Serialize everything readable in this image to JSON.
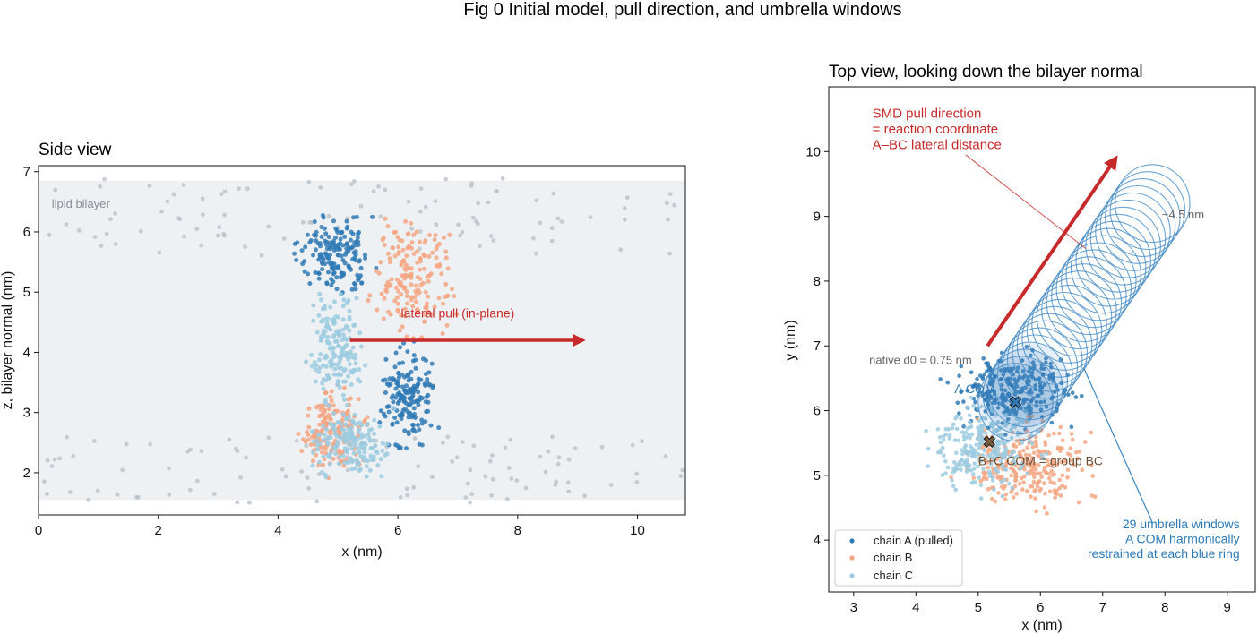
{
  "figure": {
    "title": "Fig 0  Initial model, pull direction, and umbrella windows"
  },
  "colors": {
    "chain_a": "#2f7ab5",
    "chain_b": "#f4a683",
    "chain_c": "#9ccbe0",
    "lipid": "#b8bdc4",
    "pull": "#c62a2a",
    "window": "#3d86c1",
    "bc_com": "#7a5c3e"
  },
  "chart_data": [
    {
      "type": "scatter",
      "title": "Side view",
      "xlabel": "x (nm)",
      "ylabel": "z, bilayer normal (nm)",
      "xlim": [
        0,
        10.8
      ],
      "ylim": [
        1.3,
        7.1
      ],
      "xticks": [
        0,
        2,
        4,
        6,
        8,
        10
      ],
      "yticks": [
        2,
        3,
        4,
        5,
        6,
        7
      ],
      "grid": false,
      "bilayer_band": {
        "z_range": [
          1.55,
          6.85
        ],
        "label": "lipid bilayer"
      },
      "lipid_headgroups": {
        "upper_z_range": [
          5.6,
          6.9
        ],
        "lower_z_range": [
          1.5,
          2.6
        ],
        "x_range": [
          0,
          10.8
        ]
      },
      "series": [
        {
          "name": "chain A",
          "regions": [
            {
              "x": [
                4.3,
                5.6
              ],
              "z": [
                4.8,
                6.5
              ]
            },
            {
              "x": [
                5.6,
                6.7
              ],
              "z": [
                2.2,
                4.3
              ]
            }
          ]
        },
        {
          "name": "chain B",
          "regions": [
            {
              "x": [
                5.4,
                7.0
              ],
              "z": [
                4.0,
                6.5
              ]
            },
            {
              "x": [
                4.3,
                5.6
              ],
              "z": [
                1.9,
                3.5
              ]
            }
          ]
        },
        {
          "name": "chain C",
          "regions": [
            {
              "x": [
                4.4,
                5.5
              ],
              "z": [
                3.0,
                5.2
              ]
            },
            {
              "x": [
                4.5,
                5.9
              ],
              "z": [
                1.8,
                3.2
              ]
            }
          ]
        }
      ],
      "annotations": [
        {
          "text": "lateral pull (in-plane)",
          "arrow_from": [
            5.2,
            4.2
          ],
          "arrow_to": [
            9.15,
            4.2
          ]
        }
      ]
    },
    {
      "type": "scatter",
      "title": "Top view, looking down the bilayer normal",
      "xlabel": "x (nm)",
      "ylabel": "y (nm)",
      "xlim": [
        2.6,
        9.45
      ],
      "ylim": [
        3.2,
        11.0
      ],
      "xticks": [
        3,
        4,
        5,
        6,
        7,
        8,
        9
      ],
      "yticks": [
        4,
        5,
        6,
        7,
        8,
        9,
        10
      ],
      "grid": false,
      "legend_position": "lower-left",
      "legend": [
        "chain A  (pulled)",
        "chain B",
        "chain C"
      ],
      "series": [
        {
          "name": "chain A",
          "regions": [
            {
              "x": [
                4.4,
                6.8
              ],
              "y": [
                5.6,
                7.0
              ]
            }
          ]
        },
        {
          "name": "chain B",
          "regions": [
            {
              "x": [
                4.5,
                7.0
              ],
              "y": [
                4.4,
                6.0
              ]
            }
          ]
        },
        {
          "name": "chain C",
          "regions": [
            {
              "x": [
                4.0,
                6.2
              ],
              "y": [
                4.6,
                6.3
              ]
            }
          ]
        }
      ],
      "a_com": {
        "x": 5.6,
        "y": 6.13,
        "label": "A COM"
      },
      "bc_com": {
        "x": 5.18,
        "y": 5.52,
        "label": "B+C COM = group BC"
      },
      "native_d0_label": "native d0 = 0.75 nm",
      "pull_arrow": {
        "from": [
          5.15,
          7.0
        ],
        "to": [
          7.25,
          9.95
        ]
      },
      "pull_label": [
        "SMD pull direction",
        "= reaction coordinate",
        "A–BC lateral distance"
      ],
      "umbrella_windows": {
        "count": 29,
        "first_center": [
          5.6,
          6.13
        ],
        "last_center": [
          7.8,
          9.2
        ],
        "radius_nm": 0.6,
        "span_label": "~4.5 nm",
        "label": [
          "29 umbrella windows",
          "A COM harmonically",
          "restrained at each blue ring"
        ]
      }
    }
  ]
}
